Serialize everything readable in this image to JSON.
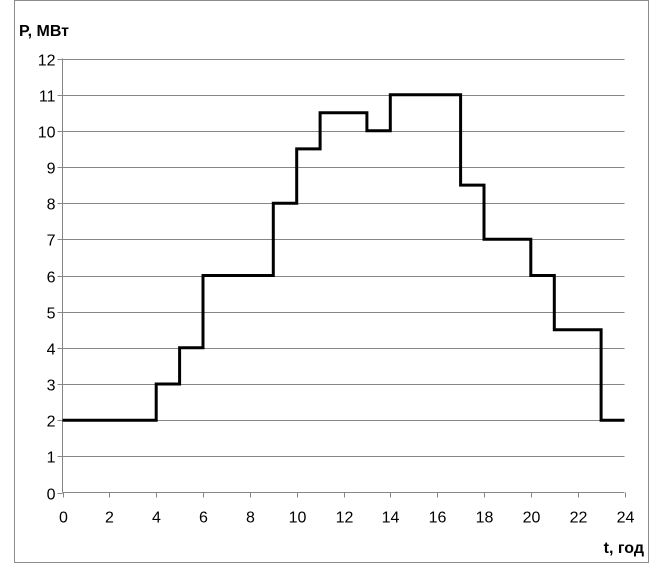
{
  "chart_data": {
    "type": "line",
    "step": true,
    "title": "",
    "ylabel": "P, МВт",
    "xlabel": "t, год",
    "xlim": [
      0,
      24
    ],
    "ylim": [
      0,
      12
    ],
    "x_ticks": [
      0,
      2,
      4,
      6,
      8,
      10,
      12,
      14,
      16,
      18,
      20,
      22,
      24
    ],
    "y_ticks": [
      0,
      1,
      2,
      3,
      4,
      5,
      6,
      7,
      8,
      9,
      10,
      11,
      12
    ],
    "grid": true,
    "legend": "none",
    "series": [
      {
        "color": "#000000",
        "x": [
          0,
          4,
          4,
          5,
          5,
          6,
          6,
          9,
          9,
          10,
          10,
          11,
          11,
          13,
          13,
          14,
          14,
          17,
          17,
          18,
          18,
          20,
          20,
          21,
          21,
          23,
          23,
          24
        ],
        "values": [
          2,
          2,
          3,
          3,
          4,
          4,
          6,
          6,
          8,
          8,
          9.5,
          9.5,
          10.5,
          10.5,
          10,
          10,
          11,
          11,
          8.5,
          8.5,
          7,
          7,
          6,
          6,
          4.5,
          4.5,
          2,
          2
        ]
      }
    ]
  }
}
